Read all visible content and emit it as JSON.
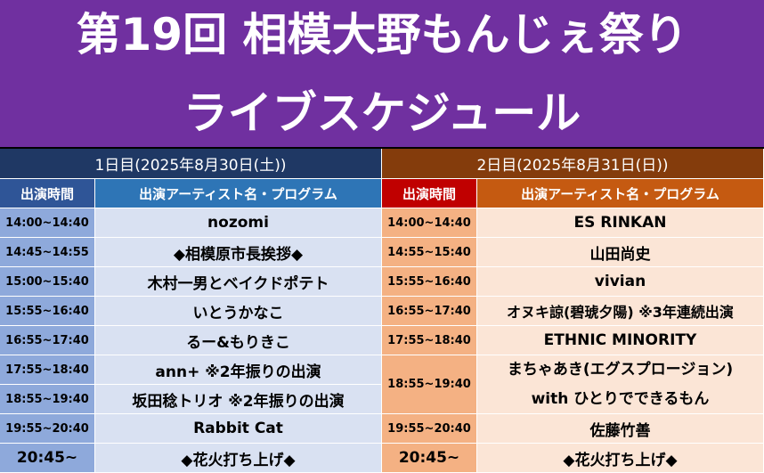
{
  "title": {
    "line1": "第19回 相模大野もんじぇ祭り",
    "line2": "ライブスケジュール"
  },
  "day1": {
    "header": "1日目(2025年8月30日(土))",
    "col_time": "出演時間",
    "col_artist": "出演アーティスト名・プログラム",
    "rows": [
      {
        "time": "14:00~14:40",
        "artist": "nozomi"
      },
      {
        "time": "14:45~14:55",
        "artist": "◆相模原市長挨拶◆"
      },
      {
        "time": "15:00~15:40",
        "artist": "木村一男とベイクドポテト"
      },
      {
        "time": "15:55~16:40",
        "artist": "いとうかなこ"
      },
      {
        "time": "16:55~17:40",
        "artist": "るー&もりきこ"
      },
      {
        "time": "17:55~18:40",
        "artist": "ann+ ※2年振りの出演"
      },
      {
        "time": "18:55~19:40",
        "artist": "坂田稔トリオ ※2年振りの出演"
      },
      {
        "time": "19:55~20:40",
        "artist": "Rabbit Cat"
      },
      {
        "time": "20:45~",
        "artist": "◆花火打ち上げ◆"
      }
    ]
  },
  "day2": {
    "header": "2日目(2025年8月31日(日))",
    "col_time": "出演時間",
    "col_artist": "出演アーティスト名・プログラム",
    "rows": [
      {
        "time": "14:00~14:40",
        "artist": "ES RINKAN"
      },
      {
        "time": "14:55~15:40",
        "artist": "山田尚史"
      },
      {
        "time": "15:55~16:40",
        "artist": "vivian"
      },
      {
        "time": "16:55~17:40",
        "artist": "オヌキ諒(碧琥夕陽) ※3年連続出演"
      },
      {
        "time": "17:55~18:40",
        "artist": "ETHNIC MINORITY"
      },
      {
        "time": "18:55~19:40",
        "artist": "まちゃあき(エグスプロージョン)",
        "artist2": "with ひとりでできるもん"
      },
      {
        "time": "19:55~20:40",
        "artist": "佐藤竹善"
      },
      {
        "time": "20:45~",
        "artist": "◆花火打ち上げ◆"
      }
    ]
  }
}
